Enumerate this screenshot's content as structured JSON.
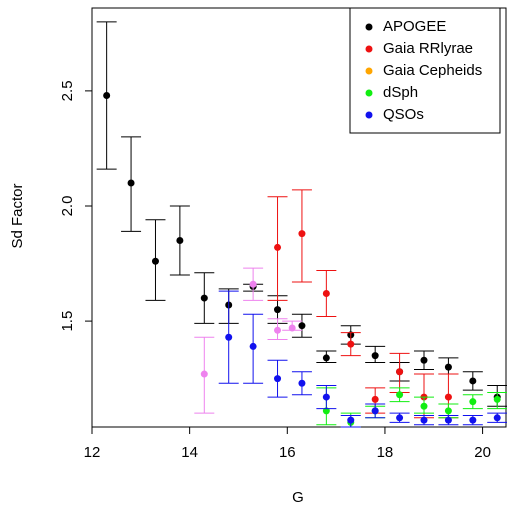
{
  "chart_data": {
    "type": "errorbar",
    "xlabel": "G",
    "ylabel": "Sd Factor",
    "xlim": [
      12,
      20.5
    ],
    "ylim": [
      1.04,
      2.86
    ],
    "xticks": [
      12,
      14,
      16,
      18,
      20
    ],
    "yticks": [
      1.5,
      2.0,
      2.5
    ],
    "legend": "top-right",
    "series": [
      {
        "name": "APOGEE",
        "color": "#000000",
        "x": [
          12.3,
          12.8,
          13.3,
          13.8,
          14.3,
          14.8,
          15.3,
          15.8,
          16.3,
          16.8,
          17.3,
          17.8,
          18.3,
          18.8,
          19.3,
          19.8,
          20.3
        ],
        "values": [
          2.48,
          2.1,
          1.76,
          1.85,
          1.6,
          1.57,
          1.65,
          1.55,
          1.48,
          1.34,
          1.44,
          1.35,
          1.28,
          1.33,
          1.3,
          1.24,
          1.17
        ],
        "lower": [
          2.16,
          1.89,
          1.59,
          1.7,
          1.49,
          1.49,
          1.63,
          1.49,
          1.43,
          1.32,
          1.4,
          1.32,
          1.24,
          1.29,
          1.27,
          1.2,
          1.13
        ],
        "upper": [
          2.8,
          2.3,
          1.94,
          2.0,
          1.71,
          1.64,
          1.66,
          1.61,
          1.53,
          1.37,
          1.48,
          1.39,
          1.32,
          1.37,
          1.34,
          1.28,
          1.22
        ]
      },
      {
        "name": "Gaia RRlyrae",
        "color": "#ee1111",
        "x": [
          15.8,
          16.3,
          16.8,
          17.3,
          17.8,
          18.3,
          18.8,
          19.3
        ],
        "values": [
          1.82,
          1.88,
          1.62,
          1.4,
          1.16,
          1.28,
          1.17,
          1.17
        ],
        "lower": [
          1.59,
          1.67,
          1.52,
          1.35,
          1.1,
          1.19,
          1.08,
          1.08
        ],
        "upper": [
          2.04,
          2.07,
          1.72,
          1.45,
          1.21,
          1.36,
          1.27,
          1.27
        ]
      },
      {
        "name": "Gaia Cepheids",
        "color": "#ffa500",
        "x": [],
        "values": [],
        "lower": [],
        "upper": []
      },
      {
        "name": "dSph",
        "color": "#11ee11",
        "x": [
          16.8,
          17.3,
          17.8,
          18.3,
          18.8,
          19.3,
          19.8,
          20.3
        ],
        "values": [
          1.11,
          1.06,
          1.11,
          1.18,
          1.13,
          1.11,
          1.15,
          1.16
        ],
        "lower": [
          1.05,
          1.04,
          1.08,
          1.15,
          1.1,
          1.08,
          1.12,
          1.12
        ],
        "upper": [
          1.21,
          1.1,
          1.13,
          1.21,
          1.17,
          1.14,
          1.18,
          1.19
        ]
      },
      {
        "name": "QSOs",
        "color": "#1111ee",
        "x": [
          14.8,
          15.3,
          15.8,
          16.3,
          16.8,
          17.3,
          17.8,
          18.3,
          18.8,
          19.3,
          19.8,
          20.3
        ],
        "values": [
          1.43,
          1.39,
          1.25,
          1.23,
          1.17,
          1.07,
          1.11,
          1.08,
          1.07,
          1.07,
          1.07,
          1.08
        ],
        "lower": [
          1.23,
          1.23,
          1.17,
          1.18,
          1.12,
          1.04,
          1.08,
          1.06,
          1.05,
          1.05,
          1.05,
          1.06
        ],
        "upper": [
          1.63,
          1.53,
          1.33,
          1.28,
          1.22,
          1.09,
          1.14,
          1.1,
          1.09,
          1.09,
          1.09,
          1.1
        ]
      },
      {
        "color": "#ee82ee",
        "x": [
          14.3,
          15.3,
          15.8,
          16.1
        ],
        "values": [
          1.27,
          1.66,
          1.46,
          1.47
        ],
        "lower": [
          1.1,
          1.59,
          1.42,
          1.46
        ],
        "upper": [
          1.43,
          1.73,
          1.51,
          1.5
        ]
      }
    ]
  }
}
